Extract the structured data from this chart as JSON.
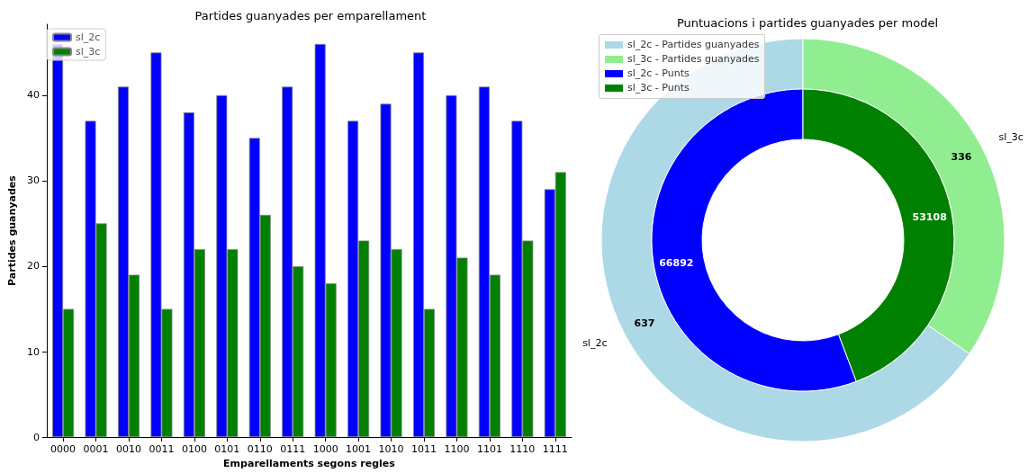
{
  "chart_data": [
    {
      "type": "bar",
      "title": "Partides guanyades per emparellament",
      "xlabel": "Emparellaments segons regles",
      "ylabel": "Partides guanyades",
      "categories": [
        "0000",
        "0001",
        "0010",
        "0011",
        "0100",
        "0101",
        "0110",
        "0111",
        "1000",
        "1001",
        "1010",
        "1011",
        "1100",
        "1101",
        "1110",
        "1111"
      ],
      "series": [
        {
          "name": "sl_2c",
          "color": "#0000ff",
          "values": [
            46,
            37,
            41,
            45,
            38,
            40,
            35,
            41,
            46,
            37,
            39,
            45,
            40,
            41,
            37,
            29
          ]
        },
        {
          "name": "sl_3c",
          "color": "#008000",
          "values": [
            15,
            25,
            19,
            15,
            22,
            22,
            26,
            20,
            18,
            23,
            22,
            15,
            21,
            19,
            23,
            31
          ]
        }
      ],
      "ylim": [
        0,
        48.3
      ],
      "yticks": [
        0,
        10,
        20,
        30,
        40
      ],
      "grid": false,
      "legend": "top left"
    },
    {
      "type": "donut",
      "title": "Puntuacions i partides guanyades per model",
      "categories": [
        "sl_2c",
        "sl_3c"
      ],
      "series": [
        {
          "name": "- Partides guanyades",
          "colors": [
            "#add8e6",
            "#90ee90"
          ],
          "values": [
            637,
            336
          ]
        },
        {
          "name": "- Punts",
          "colors": [
            "#0000ff",
            "#008000"
          ],
          "values": [
            66892,
            53108
          ]
        }
      ],
      "data_labels": true,
      "legend": "top left"
    }
  ]
}
